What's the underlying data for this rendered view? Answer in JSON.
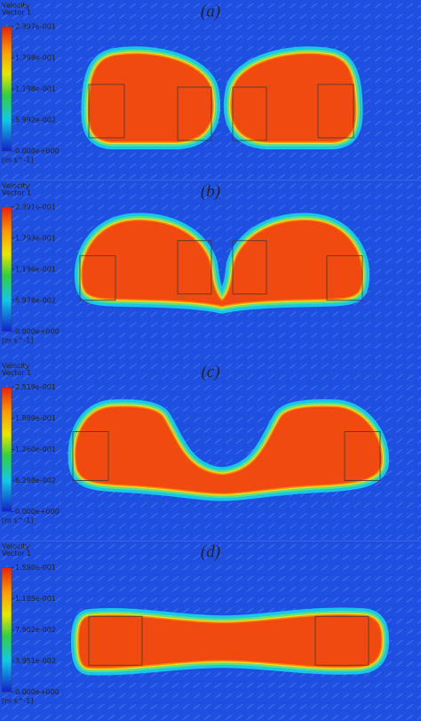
{
  "panels": [
    {
      "label": "(a)",
      "colorbar": {
        "title": "Velocity",
        "subtitle": "Vector 1",
        "ticks": [
          "2.397e-001",
          "1.798e-001",
          "1.198e-001",
          "5.992e-002",
          "0.000e+000"
        ],
        "unit": "[m s^-1]"
      }
    },
    {
      "label": "(b)",
      "colorbar": {
        "title": "Velocity",
        "subtitle": "Vector 1",
        "ticks": [
          "2.391e-001",
          "1.793e-001",
          "1.196e-001",
          "5.978e-002",
          "0.000e+000"
        ],
        "unit": "[m s^-1]"
      }
    },
    {
      "label": "(c)",
      "colorbar": {
        "title": "Velocity",
        "subtitle": "Vector 1",
        "ticks": [
          "2.519e-001",
          "1.889e-001",
          "1.260e-001",
          "6.298e-002",
          "0.000e+000"
        ],
        "unit": "[m s^-1]"
      }
    },
    {
      "label": "(d)",
      "colorbar": {
        "title": "Velocity",
        "subtitle": "Vector 1",
        "ticks": [
          "1.580e-001",
          "1.185e-001",
          "7.902e-002",
          "3.951e-002",
          "0.000e+000"
        ],
        "unit": "[m s^-1]"
      }
    }
  ]
}
